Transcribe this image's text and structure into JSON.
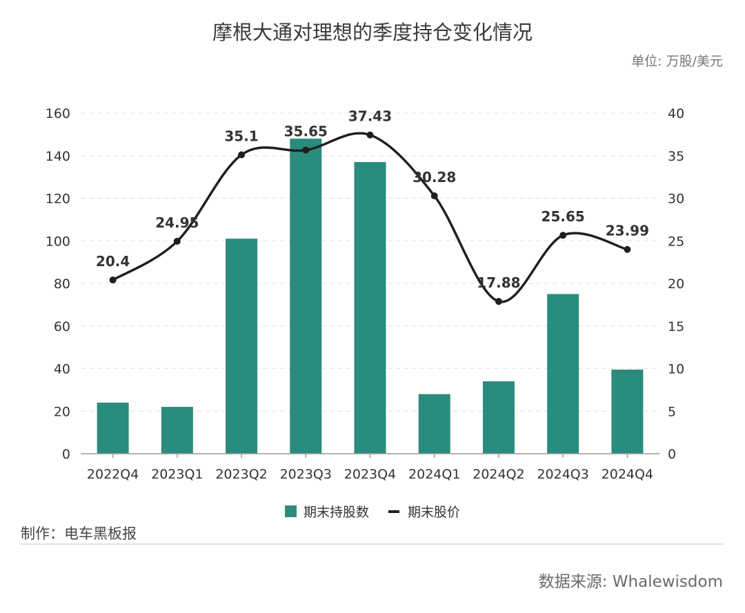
{
  "header": {
    "title": "摩根大通对理想的季度持仓变化情况",
    "unit": "单位: 万股/美元"
  },
  "footer": {
    "maker": "制作：电车黑板报",
    "source": "数据来源: Whalewisdom"
  },
  "colors": {
    "bar": "#2a8c7c",
    "line": "#1f1f1f",
    "grid": "#e6e6e6",
    "axis": "#999999",
    "label": "#333333"
  },
  "chart_data": {
    "type": "bar",
    "categories": [
      "2022Q4",
      "2023Q1",
      "2023Q2",
      "2023Q3",
      "2023Q4",
      "2024Q1",
      "2024Q2",
      "2024Q3",
      "2024Q4"
    ],
    "series": [
      {
        "name": "期末持股数",
        "type": "bar",
        "axis": "left",
        "values": [
          24,
          22,
          101,
          148,
          137,
          28,
          34,
          75,
          39.5
        ]
      },
      {
        "name": "期末股价",
        "type": "line",
        "axis": "right",
        "smooth": true,
        "values": [
          20.4,
          24.95,
          35.1,
          35.65,
          37.43,
          30.28,
          17.88,
          25.65,
          23.99
        ],
        "labels": [
          "20.4",
          "24.95",
          "35.1",
          "35.65",
          "37.43",
          "30.28",
          "17.88",
          "25.65",
          "23.99"
        ]
      }
    ],
    "y_left": {
      "ylim": [
        0,
        160
      ],
      "ticks": [
        "0",
        "20",
        "40",
        "60",
        "80",
        "100",
        "120",
        "140",
        "160"
      ]
    },
    "y_right": {
      "ylim": [
        0,
        40
      ],
      "ticks": [
        "0",
        "5",
        "10",
        "15",
        "20",
        "25",
        "30",
        "35",
        "40"
      ]
    },
    "grid": true,
    "legend": "bottom"
  }
}
